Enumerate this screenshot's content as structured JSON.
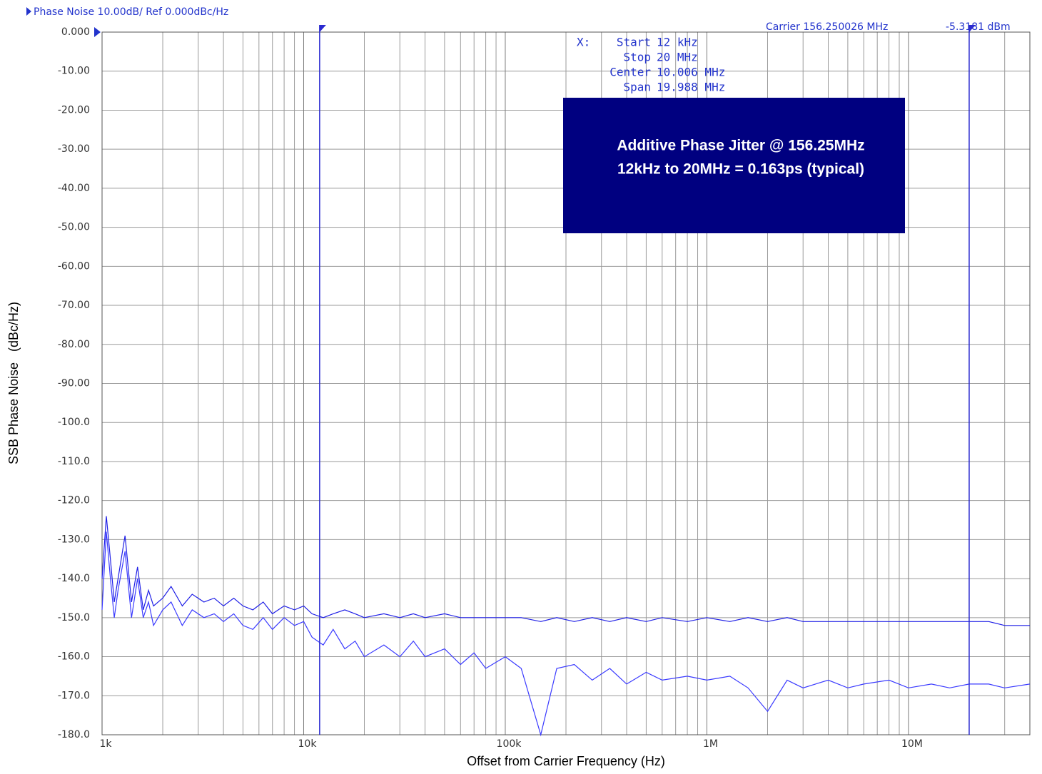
{
  "chart_data": {
    "type": "line",
    "title": "Phase Noise 10.00dB/ Ref 0.000dBc/Hz",
    "carrier_label": "Carrier 156.250026 MHz",
    "carrier_level": "-5.3181 dBm",
    "xlabel": "Offset from Carrier Frequency (Hz)",
    "ylabel": "SSB Phase Noise   (dBc/Hz)",
    "x_log": true,
    "grid": true,
    "xlim": [
      1000,
      40000000
    ],
    "ylim": [
      -180,
      0
    ],
    "xticks": [
      {
        "value": 1000,
        "label": "1k"
      },
      {
        "value": 10000,
        "label": "10k"
      },
      {
        "value": 100000,
        "label": "100k"
      },
      {
        "value": 1000000,
        "label": "1M"
      },
      {
        "value": 10000000,
        "label": "10M"
      }
    ],
    "xminor": [
      2000,
      3000,
      4000,
      5000,
      6000,
      7000,
      8000,
      9000,
      20000,
      30000,
      40000,
      50000,
      60000,
      70000,
      80000,
      90000,
      200000,
      300000,
      400000,
      500000,
      600000,
      700000,
      800000,
      900000,
      2000000,
      3000000,
      4000000,
      5000000,
      6000000,
      7000000,
      8000000,
      9000000,
      20000000,
      30000000
    ],
    "yticks": [
      {
        "value": 0,
        "label": "0.000"
      },
      {
        "value": -10,
        "label": "-10.00"
      },
      {
        "value": -20,
        "label": "-20.00"
      },
      {
        "value": -30,
        "label": "-30.00"
      },
      {
        "value": -40,
        "label": "-40.00"
      },
      {
        "value": -50,
        "label": "-50.00"
      },
      {
        "value": -60,
        "label": "-60.00"
      },
      {
        "value": -70,
        "label": "-70.00"
      },
      {
        "value": -80,
        "label": "-80.00"
      },
      {
        "value": -90,
        "label": "-90.00"
      },
      {
        "value": -100,
        "label": "-100.0"
      },
      {
        "value": -110,
        "label": "-110.0"
      },
      {
        "value": -120,
        "label": "-120.0"
      },
      {
        "value": -130,
        "label": "-130.0"
      },
      {
        "value": -140,
        "label": "-140.0"
      },
      {
        "value": -150,
        "label": "-150.0"
      },
      {
        "value": -160,
        "label": "-160.0"
      },
      {
        "value": -170,
        "label": "-170.0"
      },
      {
        "value": -180,
        "label": "-180.0"
      }
    ],
    "markers": [
      12000,
      20000000
    ],
    "marker_color": "#2a2ad0",
    "readout": {
      "axis": "X:",
      "rows": [
        [
          "Start",
          "12 kHz"
        ],
        [
          "Stop",
          "20 MHz"
        ],
        [
          "Center",
          "10.006 MHz"
        ],
        [
          "Span",
          "19.988 MHz"
        ]
      ]
    },
    "annotation": {
      "lines": [
        "Additive Phase Jitter @ 156.25MHz",
        "12kHz to 20MHz = 0.163ps (typical)"
      ],
      "color": "#000080"
    },
    "x": [
      1000,
      1050,
      1100,
      1150,
      1200,
      1300,
      1400,
      1500,
      1600,
      1700,
      1800,
      2000,
      2200,
      2500,
      2800,
      3200,
      3600,
      4000,
      4500,
      5000,
      5600,
      6300,
      7000,
      8000,
      9000,
      10000,
      11000,
      12500,
      14000,
      16000,
      18000,
      20000,
      25000,
      30000,
      35000,
      40000,
      50000,
      60000,
      70000,
      80000,
      100000,
      120000,
      150000,
      180000,
      220000,
      270000,
      330000,
      400000,
      500000,
      600000,
      800000,
      1000000,
      1300000,
      1600000,
      2000000,
      2500000,
      3000000,
      4000000,
      5000000,
      6000000,
      8000000,
      10000000,
      13000000,
      16000000,
      20000000,
      25000000,
      30000000,
      40000000
    ],
    "series": [
      {
        "color": "#1f1fe6",
        "values": [
          -140,
          -124,
          -135,
          -146,
          -140,
          -129,
          -146,
          -137,
          -148,
          -143,
          -147,
          -145,
          -142,
          -147,
          -144,
          -146,
          -145,
          -147,
          -145,
          -147,
          -148,
          -146,
          -149,
          -147,
          -148,
          -147,
          -149,
          -150,
          -149,
          -148,
          -149,
          -150,
          -149,
          -150,
          -149,
          -150,
          -149,
          -150,
          -150,
          -150,
          -150,
          -150,
          -151,
          -150,
          -151,
          -150,
          -151,
          -150,
          -151,
          -150,
          -151,
          -150,
          -151,
          -150,
          -151,
          -150,
          -151,
          -151,
          -151,
          -151,
          -151,
          -151,
          -151,
          -151,
          -151,
          -151,
          -152,
          -152
        ]
      },
      {
        "color": "#3a3aff",
        "values": [
          -148,
          -128,
          -140,
          -150,
          -143,
          -133,
          -150,
          -140,
          -150,
          -146,
          -152,
          -148,
          -146,
          -152,
          -148,
          -150,
          -149,
          -151,
          -149,
          -152,
          -153,
          -150,
          -153,
          -150,
          -152,
          -151,
          -155,
          -157,
          -153,
          -158,
          -156,
          -160,
          -157,
          -160,
          -156,
          -160,
          -158,
          -162,
          -159,
          -163,
          -160,
          -163,
          -180,
          -163,
          -162,
          -166,
          -163,
          -167,
          -164,
          -166,
          -165,
          -166,
          -165,
          -168,
          -174,
          -166,
          -168,
          -166,
          -168,
          -167,
          -166,
          -168,
          -167,
          -168,
          -167,
          -167,
          -168,
          -167
        ]
      }
    ]
  }
}
